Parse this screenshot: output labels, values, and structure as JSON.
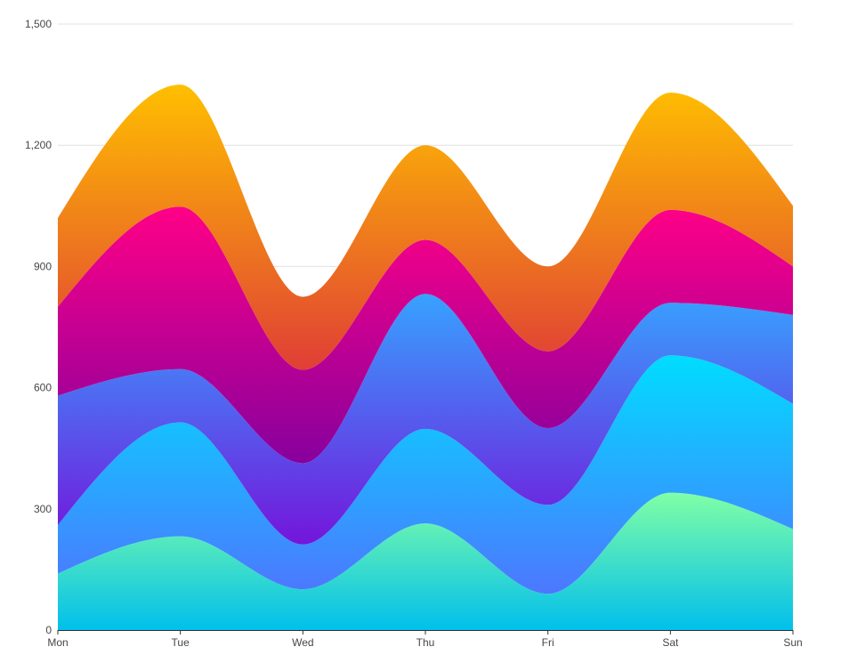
{
  "chart_data": {
    "type": "area",
    "stacked": true,
    "smooth": true,
    "categories": [
      "Mon",
      "Tue",
      "Wed",
      "Thu",
      "Fri",
      "Sat",
      "Sun"
    ],
    "ylim": [
      0,
      1500
    ],
    "yticks": [
      0,
      300,
      600,
      900,
      1200,
      1500
    ],
    "ytick_labels": [
      "0",
      "300",
      "600",
      "900",
      "1,200",
      "1,500"
    ],
    "grid": true,
    "legend": "none",
    "series": [
      {
        "values": [
          140,
          232,
          101,
          264,
          90,
          340,
          250
        ],
        "colors": [
          "#80FFA5",
          "#01BFEC"
        ]
      },
      {
        "values": [
          120,
          282,
          111,
          234,
          220,
          340,
          310
        ],
        "colors": [
          "#00DDFF",
          "#4D77FF"
        ]
      },
      {
        "values": [
          320,
          132,
          201,
          334,
          190,
          130,
          220
        ],
        "colors": [
          "#37A2FF",
          "#7415DB"
        ]
      },
      {
        "values": [
          220,
          402,
          231,
          134,
          190,
          230,
          120
        ],
        "colors": [
          "#FF0087",
          "#87009D"
        ]
      },
      {
        "values": [
          220,
          302,
          181,
          234,
          210,
          290,
          150
        ],
        "colors": [
          "#FFBF00",
          "#E03E36"
        ]
      }
    ]
  }
}
